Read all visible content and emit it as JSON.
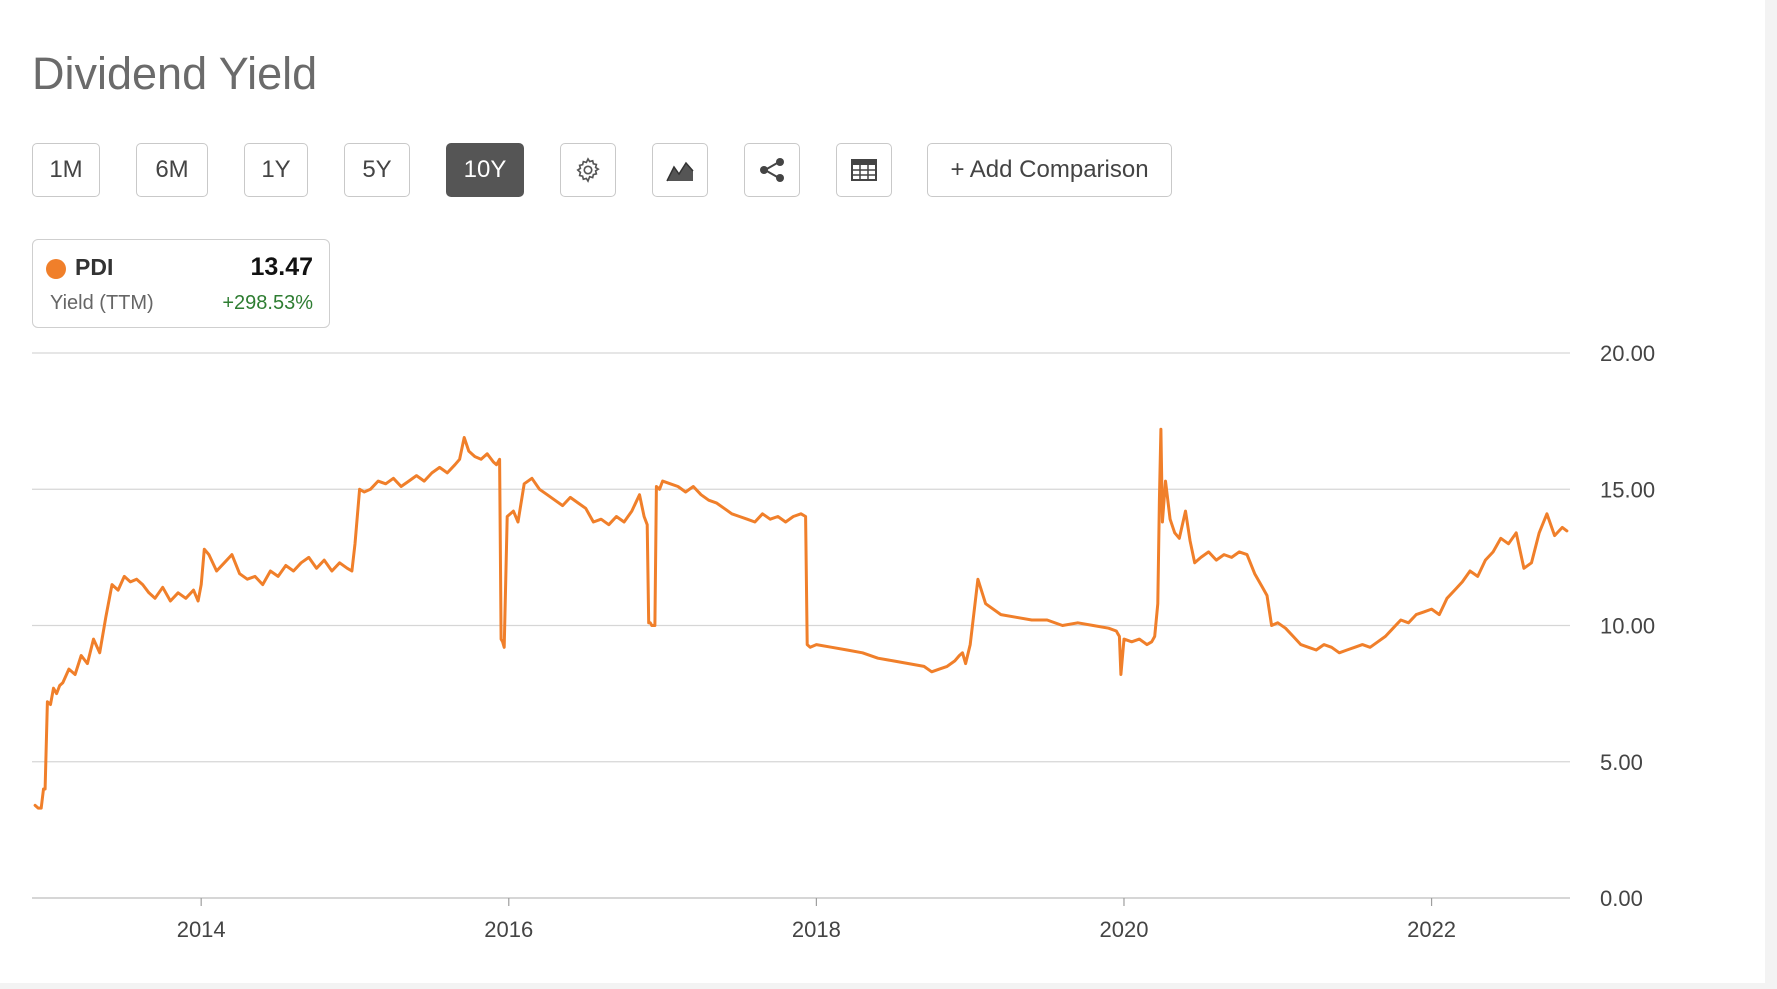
{
  "page": {
    "title": "Dividend Yield"
  },
  "toolbar": {
    "ranges": [
      {
        "label": "1M",
        "active": false
      },
      {
        "label": "6M",
        "active": false
      },
      {
        "label": "1Y",
        "active": false
      },
      {
        "label": "5Y",
        "active": false
      },
      {
        "label": "10Y",
        "active": true
      }
    ],
    "icons": [
      "gear-icon",
      "chart-type-icon",
      "share-icon",
      "table-icon"
    ],
    "add_comparison_label": "+ Add Comparison"
  },
  "legend": {
    "ticker": "PDI",
    "value": "13.47",
    "subtitle": "Yield (TTM)",
    "change": "+298.53%",
    "dot_color": "#f07f2a",
    "change_color": "#2e7d32"
  },
  "chart_data": {
    "type": "line",
    "title": "",
    "xlabel": "",
    "ylabel": "",
    "xlim": [
      2012.9,
      2022.9
    ],
    "ylim": [
      0,
      20
    ],
    "grid": true,
    "y_axis_side": "right",
    "y_ticks": [
      "0.00",
      "5.00",
      "10.00",
      "15.00",
      "20.00"
    ],
    "x_ticks": [
      "2014",
      "2016",
      "2018",
      "2020",
      "2022"
    ],
    "series": [
      {
        "name": "PDI",
        "color": "#f07f2a",
        "x": [
          2012.92,
          2012.94,
          2012.96,
          2012.975,
          2012.985,
          2013.0,
          2013.02,
          2013.04,
          2013.06,
          2013.08,
          2013.1,
          2013.14,
          2013.18,
          2013.22,
          2013.26,
          2013.3,
          2013.34,
          2013.38,
          2013.42,
          2013.46,
          2013.5,
          2013.54,
          2013.58,
          2013.62,
          2013.66,
          2013.7,
          2013.75,
          2013.8,
          2013.85,
          2013.9,
          2013.95,
          2013.98,
          2014.0,
          2014.02,
          2014.05,
          2014.1,
          2014.15,
          2014.2,
          2014.25,
          2014.3,
          2014.35,
          2014.4,
          2014.45,
          2014.5,
          2014.55,
          2014.6,
          2014.65,
          2014.7,
          2014.75,
          2014.8,
          2014.85,
          2014.9,
          2014.95,
          2014.98,
          2015.0,
          2015.03,
          2015.06,
          2015.1,
          2015.15,
          2015.2,
          2015.25,
          2015.3,
          2015.35,
          2015.4,
          2015.45,
          2015.5,
          2015.55,
          2015.6,
          2015.65,
          2015.68,
          2015.71,
          2015.74,
          2015.78,
          2015.82,
          2015.86,
          2015.9,
          2015.92,
          2015.94,
          2015.95,
          2015.96,
          2015.97,
          2015.99,
          2016.03,
          2016.06,
          2016.1,
          2016.15,
          2016.2,
          2016.25,
          2016.3,
          2016.35,
          2016.4,
          2016.45,
          2016.5,
          2016.55,
          2016.6,
          2016.65,
          2016.7,
          2016.75,
          2016.8,
          2016.85,
          2016.88,
          2016.9,
          2016.91,
          2016.92,
          2016.93,
          2016.95,
          2016.96,
          2016.98,
          2017.0,
          2017.05,
          2017.1,
          2017.15,
          2017.2,
          2017.25,
          2017.3,
          2017.35,
          2017.4,
          2017.45,
          2017.5,
          2017.55,
          2017.6,
          2017.65,
          2017.7,
          2017.75,
          2017.8,
          2017.85,
          2017.9,
          2017.93,
          2017.94,
          2017.96,
          2018.0,
          2018.1,
          2018.2,
          2018.3,
          2018.4,
          2018.5,
          2018.6,
          2018.7,
          2018.75,
          2018.8,
          2018.85,
          2018.9,
          2018.93,
          2018.95,
          2018.97,
          2019.0,
          2019.05,
          2019.1,
          2019.2,
          2019.3,
          2019.4,
          2019.5,
          2019.6,
          2019.7,
          2019.8,
          2019.9,
          2019.95,
          2019.96,
          2019.97,
          2019.98,
          2020.0,
          2020.05,
          2020.1,
          2020.15,
          2020.18,
          2020.2,
          2020.22,
          2020.23,
          2020.24,
          2020.25,
          2020.27,
          2020.3,
          2020.33,
          2020.36,
          2020.4,
          2020.43,
          2020.46,
          2020.5,
          2020.55,
          2020.6,
          2020.65,
          2020.7,
          2020.75,
          2020.8,
          2020.85,
          2020.9,
          2020.93,
          2020.96,
          2021.0,
          2021.05,
          2021.1,
          2021.15,
          2021.2,
          2021.25,
          2021.3,
          2021.35,
          2021.4,
          2021.45,
          2021.5,
          2021.55,
          2021.6,
          2021.65,
          2021.7,
          2021.75,
          2021.8,
          2021.85,
          2021.9,
          2021.95,
          2022.0,
          2022.05,
          2022.1,
          2022.15,
          2022.2,
          2022.25,
          2022.3,
          2022.35,
          2022.4,
          2022.45,
          2022.5,
          2022.55,
          2022.6,
          2022.65,
          2022.7,
          2022.75,
          2022.8,
          2022.85,
          2022.88
        ],
        "values": [
          3.4,
          3.3,
          3.3,
          4.0,
          4.0,
          7.2,
          7.1,
          7.7,
          7.5,
          7.8,
          7.9,
          8.4,
          8.2,
          8.9,
          8.6,
          9.5,
          9.0,
          10.3,
          11.5,
          11.3,
          11.8,
          11.6,
          11.7,
          11.5,
          11.2,
          11.0,
          11.4,
          10.9,
          11.2,
          11.0,
          11.3,
          10.9,
          11.5,
          12.8,
          12.6,
          12.0,
          12.3,
          12.6,
          11.9,
          11.7,
          11.8,
          11.5,
          12.0,
          11.8,
          12.2,
          12.0,
          12.3,
          12.5,
          12.1,
          12.4,
          12.0,
          12.3,
          12.1,
          12.0,
          13.0,
          15.0,
          14.9,
          15.0,
          15.3,
          15.2,
          15.4,
          15.1,
          15.3,
          15.5,
          15.3,
          15.6,
          15.8,
          15.6,
          15.9,
          16.1,
          16.9,
          16.4,
          16.2,
          16.1,
          16.3,
          16.0,
          15.9,
          16.1,
          9.5,
          9.4,
          9.2,
          14.0,
          14.2,
          13.8,
          15.2,
          15.4,
          15.0,
          14.8,
          14.6,
          14.4,
          14.7,
          14.5,
          14.3,
          13.8,
          13.9,
          13.7,
          14.0,
          13.8,
          14.2,
          14.8,
          14.0,
          13.7,
          10.1,
          10.1,
          10.0,
          10.0,
          15.1,
          15.0,
          15.3,
          15.2,
          15.1,
          14.9,
          15.1,
          14.8,
          14.6,
          14.5,
          14.3,
          14.1,
          14.0,
          13.9,
          13.8,
          14.1,
          13.9,
          14.0,
          13.8,
          14.0,
          14.1,
          14.0,
          9.3,
          9.2,
          9.3,
          9.2,
          9.1,
          9.0,
          8.8,
          8.7,
          8.6,
          8.5,
          8.3,
          8.4,
          8.5,
          8.7,
          8.9,
          9.0,
          8.6,
          9.3,
          11.7,
          10.8,
          10.4,
          10.3,
          10.2,
          10.2,
          10.0,
          10.1,
          10.0,
          9.9,
          9.8,
          9.7,
          9.6,
          8.2,
          9.5,
          9.4,
          9.5,
          9.3,
          9.4,
          9.6,
          10.8,
          14.6,
          17.2,
          13.8,
          15.3,
          13.9,
          13.4,
          13.2,
          14.2,
          13.1,
          12.3,
          12.5,
          12.7,
          12.4,
          12.6,
          12.5,
          12.7,
          12.6,
          11.9,
          11.4,
          11.1,
          10.0,
          10.1,
          9.9,
          9.6,
          9.3,
          9.2,
          9.1,
          9.3,
          9.2,
          9.0,
          9.1,
          9.2,
          9.3,
          9.2,
          9.4,
          9.6,
          9.9,
          10.2,
          10.1,
          10.4,
          10.5,
          10.6,
          10.4,
          11.0,
          11.3,
          11.6,
          12.0,
          11.8,
          12.4,
          12.7,
          13.2,
          13.0,
          13.4,
          12.1,
          12.3,
          13.4,
          14.1,
          13.3,
          13.6,
          13.47
        ]
      }
    ]
  }
}
